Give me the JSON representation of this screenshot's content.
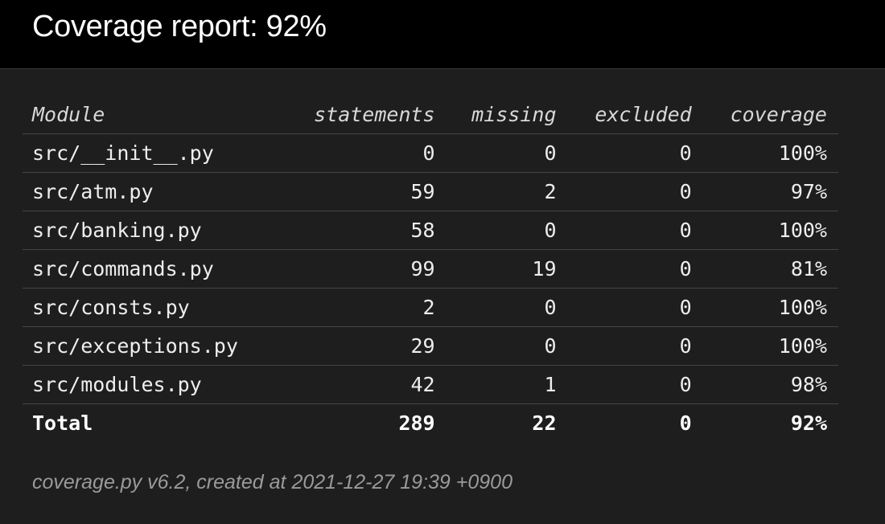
{
  "title": "Coverage report: 92%",
  "columns": {
    "module": "Module",
    "statements": "statements",
    "missing": "missing",
    "excluded": "excluded",
    "coverage": "coverage"
  },
  "rows": [
    {
      "module": "src/__init__.py",
      "statements": "0",
      "missing": "0",
      "excluded": "0",
      "coverage": "100%"
    },
    {
      "module": "src/atm.py",
      "statements": "59",
      "missing": "2",
      "excluded": "0",
      "coverage": "97%"
    },
    {
      "module": "src/banking.py",
      "statements": "58",
      "missing": "0",
      "excluded": "0",
      "coverage": "100%"
    },
    {
      "module": "src/commands.py",
      "statements": "99",
      "missing": "19",
      "excluded": "0",
      "coverage": "81%"
    },
    {
      "module": "src/consts.py",
      "statements": "2",
      "missing": "0",
      "excluded": "0",
      "coverage": "100%"
    },
    {
      "module": "src/exceptions.py",
      "statements": "29",
      "missing": "0",
      "excluded": "0",
      "coverage": "100%"
    },
    {
      "module": "src/modules.py",
      "statements": "42",
      "missing": "1",
      "excluded": "0",
      "coverage": "98%"
    }
  ],
  "total": {
    "module": "Total",
    "statements": "289",
    "missing": "22",
    "excluded": "0",
    "coverage": "92%"
  },
  "footer": {
    "generator": "coverage.py v6.2",
    "created_prefix": ", created at ",
    "created_at": "2021-12-27 19:39 +0900"
  }
}
